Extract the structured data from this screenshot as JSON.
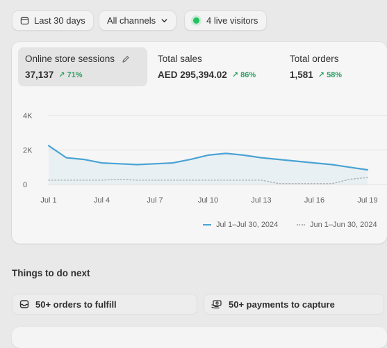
{
  "toolbar": {
    "date_range": "Last 30 days",
    "channels": "All channels",
    "live_visitors": "4 live visitors"
  },
  "metrics": [
    {
      "label": "Online store sessions",
      "value": "37,137",
      "change": "↗ 71%"
    },
    {
      "label": "Total sales",
      "value": "AED 295,394.02",
      "change": "↗ 86%"
    },
    {
      "label": "Total orders",
      "value": "1,581",
      "change": "↗ 58%"
    }
  ],
  "legend": {
    "current": "Jul 1–Jul 30, 2024",
    "previous": "Jun 1–Jun 30, 2024"
  },
  "chart_data": {
    "type": "line",
    "x": [
      "Jul 1",
      "Jul 2",
      "Jul 3",
      "Jul 4",
      "Jul 5",
      "Jul 6",
      "Jul 7",
      "Jul 8",
      "Jul 9",
      "Jul 10",
      "Jul 11",
      "Jul 12",
      "Jul 13",
      "Jul 14",
      "Jul 15",
      "Jul 16",
      "Jul 17",
      "Jul 18",
      "Jul 19"
    ],
    "x_tick_labels": [
      "Jul 1",
      "Jul 4",
      "Jul 7",
      "Jul 10",
      "Jul 13",
      "Jul 16",
      "Jul 19"
    ],
    "x_tick_indices": [
      0,
      3,
      6,
      9,
      12,
      15,
      18
    ],
    "y_tick_labels": [
      "0",
      "2K",
      "4K"
    ],
    "y_tick_values": [
      0,
      2000,
      4000
    ],
    "ylim": [
      0,
      4000
    ],
    "series": [
      {
        "name": "Jul 1–Jul 30, 2024",
        "color": "#4aa3d4",
        "style": "solid",
        "area": true,
        "values": [
          2250,
          1550,
          1450,
          1250,
          1200,
          1150,
          1200,
          1250,
          1450,
          1700,
          1800,
          1700,
          1550,
          1450,
          1350,
          1250,
          1150,
          1000,
          850
        ]
      },
      {
        "name": "Jun 1–Jun 30, 2024",
        "color": "#b5b5b5",
        "style": "dotted",
        "area": false,
        "values": [
          250,
          250,
          250,
          250,
          300,
          250,
          250,
          250,
          250,
          250,
          250,
          250,
          250,
          50,
          50,
          50,
          50,
          300,
          400
        ]
      }
    ],
    "grid": true
  },
  "section": {
    "title": "Things to do next"
  },
  "tasks": [
    {
      "label": "50+ orders to fulfill",
      "icon": "inbox-icon"
    },
    {
      "label": "50+ payments to capture",
      "icon": "cash-icon"
    }
  ]
}
